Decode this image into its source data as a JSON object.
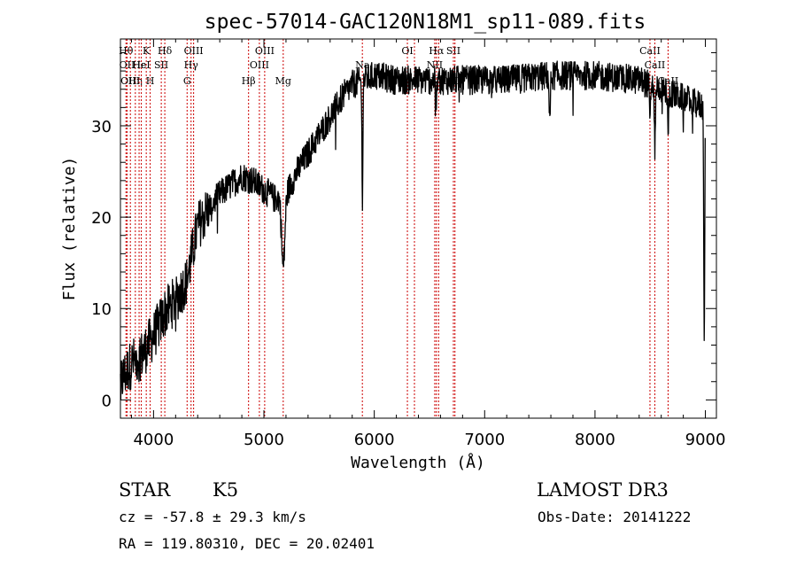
{
  "chart_data": {
    "type": "line",
    "title": "spec-57014-GAC120N18M1_sp11-089.fits",
    "xlabel": "Wavelength (Å)",
    "ylabel": "Flux (relative)",
    "xlim": [
      3700,
      9100
    ],
    "ylim": [
      -2,
      39.5
    ],
    "xticks": [
      4000,
      5000,
      6000,
      7000,
      8000,
      9000
    ],
    "yticks": [
      0,
      10,
      20,
      30
    ],
    "line_color": "#000000",
    "marker_color": "#cc0000",
    "continuum": [
      [
        3700,
        2
      ],
      [
        3800,
        4
      ],
      [
        3900,
        5
      ],
      [
        4000,
        7
      ],
      [
        4100,
        9.5
      ],
      [
        4200,
        11
      ],
      [
        4300,
        13
      ],
      [
        4400,
        19
      ],
      [
        4500,
        21
      ],
      [
        4600,
        22.5
      ],
      [
        4700,
        23.5
      ],
      [
        4800,
        24.5
      ],
      [
        4900,
        24
      ],
      [
        5000,
        23
      ],
      [
        5100,
        22
      ],
      [
        5200,
        22.5
      ],
      [
        5300,
        25
      ],
      [
        5400,
        27
      ],
      [
        5500,
        29
      ],
      [
        5600,
        31
      ],
      [
        5700,
        33
      ],
      [
        5800,
        34.5
      ],
      [
        5900,
        35
      ],
      [
        6000,
        35.5
      ],
      [
        6200,
        35
      ],
      [
        6500,
        35
      ],
      [
        6800,
        35
      ],
      [
        7200,
        35
      ],
      [
        7600,
        35.5
      ],
      [
        8000,
        35.5
      ],
      [
        8400,
        35
      ],
      [
        8600,
        34
      ],
      [
        8800,
        33
      ],
      [
        9000,
        32
      ]
    ],
    "absorption_features": [
      {
        "x": 5175,
        "depth": 8,
        "width": 20
      },
      {
        "x": 5892,
        "depth": 13,
        "width": 6
      },
      {
        "x": 6563,
        "depth": 3,
        "width": 6
      },
      {
        "x": 7590,
        "depth": 5,
        "width": 8
      },
      {
        "x": 8498,
        "depth": 5,
        "width": 6
      },
      {
        "x": 8542,
        "depth": 7,
        "width": 6
      },
      {
        "x": 8662,
        "depth": 5,
        "width": 6
      },
      {
        "x": 8990,
        "depth": 26,
        "width": 6
      }
    ],
    "noise_amplitude": 1.6,
    "line_markers": [
      {
        "x": 3750,
        "label": "Hθ",
        "row": 1
      },
      {
        "x": 3760,
        "label": "OII",
        "row": 2
      },
      {
        "x": 3790,
        "label": "OIII",
        "row": 3
      },
      {
        "x": 3835,
        "label": "Hη",
        "row": 3
      },
      {
        "x": 3869,
        "label": "Hε",
        "row": 2
      },
      {
        "x": 3889,
        "label": "HeI",
        "row": 2
      },
      {
        "x": 3934,
        "label": "K",
        "row": 1
      },
      {
        "x": 3969,
        "label": "H",
        "row": 3
      },
      {
        "x": 4070,
        "label": "SII",
        "row": 2
      },
      {
        "x": 4102,
        "label": "Hδ",
        "row": 1
      },
      {
        "x": 4304,
        "label": "G",
        "row": 3
      },
      {
        "x": 4340,
        "label": "Hγ",
        "row": 2
      },
      {
        "x": 4363,
        "label": "OIII",
        "row": 1
      },
      {
        "x": 4861,
        "label": "Hβ",
        "row": 3
      },
      {
        "x": 4959,
        "label": "OIII",
        "row": 2
      },
      {
        "x": 5007,
        "label": "OIII",
        "row": 1
      },
      {
        "x": 5175,
        "label": "Mg",
        "row": 3
      },
      {
        "x": 5892,
        "label": "Na",
        "row": 2
      },
      {
        "x": 6300,
        "label": "OI",
        "row": 1
      },
      {
        "x": 6364,
        "label": "",
        "row": 0
      },
      {
        "x": 6548,
        "label": "NII",
        "row": 2
      },
      {
        "x": 6563,
        "label": "Hα",
        "row": 1
      },
      {
        "x": 6583,
        "label": "NII",
        "row": 3
      },
      {
        "x": 6717,
        "label": "SII",
        "row": 1
      },
      {
        "x": 6731,
        "label": "SII",
        "row": 3
      },
      {
        "x": 8498,
        "label": "CaII",
        "row": 1
      },
      {
        "x": 8542,
        "label": "CaII",
        "row": 2
      },
      {
        "x": 8662,
        "label": "CaII",
        "row": 3
      }
    ]
  },
  "info": {
    "object_class": "STAR",
    "subclass": "K5",
    "survey": "LAMOST DR3",
    "redshift": "cz = -57.8 ± 29.3 km/s",
    "obs_date": "Obs-Date: 20141222",
    "coords": "RA = 119.80310, DEC =  20.02401"
  }
}
